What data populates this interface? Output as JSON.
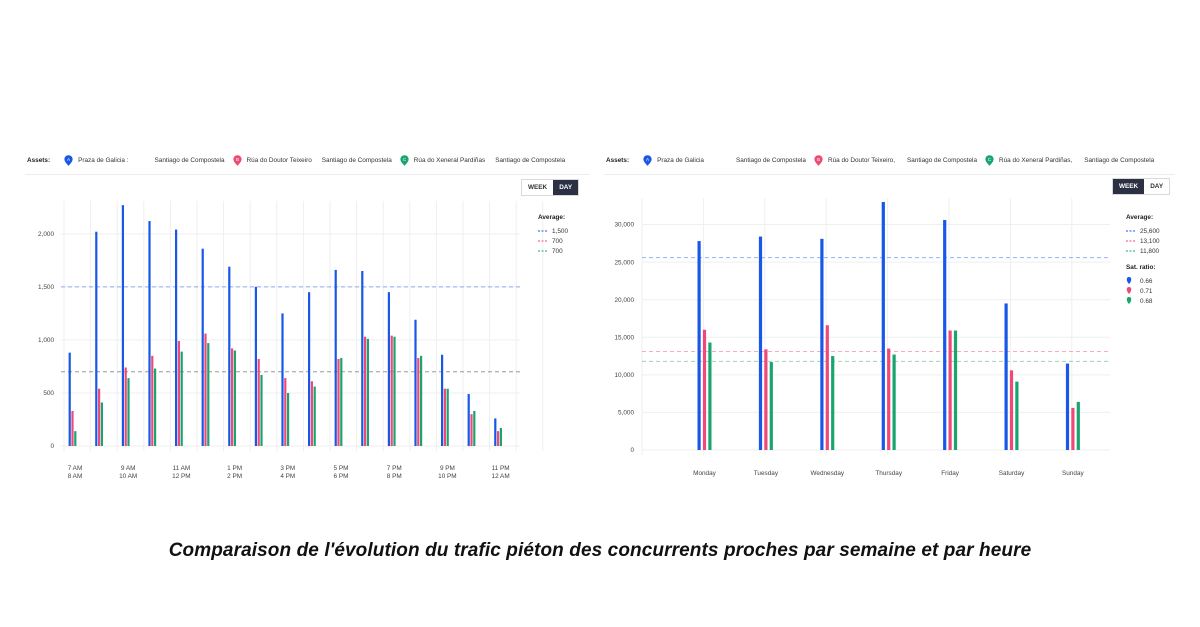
{
  "caption": "Comparaison de l'évolution du trafic piéton des concurrents proches par semaine et par heure",
  "colors": {
    "blue": "#1857e8",
    "pink": "#ee4a78",
    "green": "#1aa56e"
  },
  "left": {
    "assets_label": "Assets:",
    "assets": [
      {
        "marker": "A",
        "name": "Praza de Galicia :",
        "city": "Santiago de Compostela",
        "color": "#1857e8"
      },
      {
        "marker": "B",
        "name": "Rúa do Doutor Teixeiro",
        "city": "Santiago de Compostela",
        "color": "#ee4a78"
      },
      {
        "marker": "C",
        "name": "Rúa do Xeneral Pardiñas",
        "city": "Santiago de Compostela",
        "color": "#1aa56e"
      }
    ],
    "toggle": {
      "week": "WEEK",
      "day": "DAY",
      "active": "day"
    }
  },
  "right": {
    "assets_label": "Assets:",
    "assets": [
      {
        "marker": "A",
        "name": "Praza de Galicia",
        "city": "Santiago de Compostela",
        "color": "#1857e8"
      },
      {
        "marker": "B",
        "name": "Rúa do Doutor Teixeiro,",
        "city": "Santiago de Compostela",
        "color": "#ee4a78"
      },
      {
        "marker": "C",
        "name": "Rúa do Xeneral Pardiñas,",
        "city": "Santiago de Compostela",
        "color": "#1aa56e"
      }
    ],
    "toggle": {
      "week": "WEEK",
      "day": "DAY",
      "active": "week"
    }
  },
  "chart_data": [
    {
      "type": "bar",
      "categories": [
        "7 AM",
        "8 AM",
        "9 AM",
        "10 AM",
        "11 AM",
        "12 PM",
        "1 PM",
        "2 PM",
        "3 PM",
        "4 PM",
        "5 PM",
        "6 PM",
        "7 PM",
        "8 PM",
        "9 PM",
        "10 PM",
        "11 PM",
        "12 AM"
      ],
      "tick_labels": [
        [
          "7 AM",
          "8 AM"
        ],
        [
          "9 AM",
          "10 AM"
        ],
        [
          "11 AM",
          "12 PM"
        ],
        [
          "1 PM",
          "2 PM"
        ],
        [
          "3 PM",
          "4 PM"
        ],
        [
          "5 PM",
          "6 PM"
        ],
        [
          "7 PM",
          "8 PM"
        ],
        [
          "9 PM",
          "10 PM"
        ],
        [
          "11 PM",
          "12 AM"
        ]
      ],
      "series": [
        {
          "color": "#1857e8",
          "values": [
            880,
            2020,
            2270,
            2120,
            2040,
            1860,
            1690,
            1500,
            1250,
            1450,
            1660,
            1650,
            1450,
            1190,
            860,
            490,
            260,
            0
          ]
        },
        {
          "color": "#ee4a78",
          "values": [
            330,
            540,
            740,
            850,
            990,
            1060,
            920,
            820,
            640,
            610,
            820,
            1030,
            1040,
            830,
            540,
            300,
            140,
            0
          ]
        },
        {
          "color": "#1aa56e",
          "values": [
            140,
            410,
            640,
            730,
            890,
            970,
            900,
            670,
            500,
            560,
            830,
            1010,
            1030,
            850,
            540,
            330,
            170,
            0
          ]
        }
      ],
      "yticks": [
        0,
        500,
        "1,000",
        "1,500",
        "2,000"
      ],
      "ylim": [
        0,
        2300
      ],
      "averages": [
        {
          "label": "1,500",
          "value": 1500,
          "color": "#1857e8"
        },
        {
          "label": "700",
          "value": 700,
          "color": "#ee4a78"
        },
        {
          "label": "700",
          "value": 700,
          "color": "#1aa56e"
        }
      ],
      "legend_title": "Average:",
      "legend": "top-right",
      "grid": true
    },
    {
      "type": "bar",
      "categories": [
        "Monday",
        "Tuesday",
        "Wednesday",
        "Thursday",
        "Friday",
        "Saturday",
        "Sunday"
      ],
      "series": [
        {
          "color": "#1857e8",
          "values": [
            27800,
            28400,
            28100,
            33000,
            30600,
            19500,
            11500
          ]
        },
        {
          "color": "#ee4a78",
          "values": [
            16000,
            13400,
            16600,
            13500,
            15900,
            10600,
            5600
          ]
        },
        {
          "color": "#1aa56e",
          "values": [
            14300,
            11700,
            12500,
            12700,
            15900,
            9100,
            6400
          ]
        }
      ],
      "yticks": [
        "0",
        "5,000",
        "10,000",
        "15,000",
        "20,000",
        "25,000",
        "30,000"
      ],
      "ylim": [
        0,
        33000
      ],
      "averages": [
        {
          "label": "25,600",
          "value": 25600,
          "color": "#1857e8"
        },
        {
          "label": "13,100",
          "value": 13100,
          "color": "#ee4a78"
        },
        {
          "label": "11,800",
          "value": 11800,
          "color": "#1aa56e"
        }
      ],
      "legend_title": "Average:",
      "sat_title": "Sat. ratio:",
      "sat_ratios": [
        {
          "label": "0.66",
          "color": "#1857e8"
        },
        {
          "label": "0.71",
          "color": "#ee4a78"
        },
        {
          "label": "0.68",
          "color": "#1aa56e"
        }
      ],
      "legend": "top-right",
      "grid": true
    }
  ]
}
